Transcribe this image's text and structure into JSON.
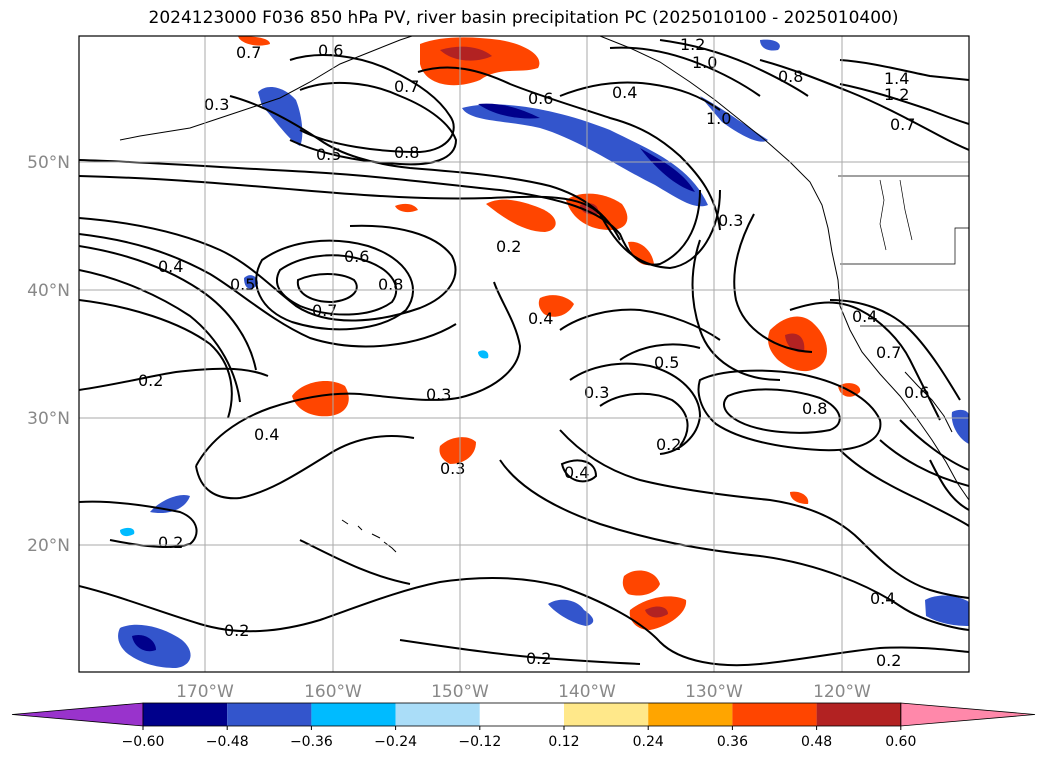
{
  "title": "2024123000 F036 850 hPa PV, river basin precipitation PC (2025010100 - 2025010400)",
  "longitude_labels": [
    "170°W",
    "160°W",
    "150°W",
    "140°W",
    "130°W",
    "120°W"
  ],
  "latitude_labels": [
    "50°N",
    "40°N",
    "30°N",
    "20°N"
  ],
  "colorbar": {
    "ticks": [
      "−0.60",
      "−0.48",
      "−0.36",
      "−0.24",
      "−0.12",
      "0.12",
      "0.24",
      "0.36",
      "0.48",
      "0.60"
    ],
    "colors": [
      "#9933cc",
      "#00008b",
      "#3355cc",
      "#00bbff",
      "#aaddf8",
      "#ffffff",
      "#ffe88a",
      "#ffa500",
      "#ff4500",
      "#b22222",
      "#ff88aa"
    ]
  },
  "contour_labels": [
    "0.7",
    "0.6",
    "0.3",
    "0.7",
    "0.5",
    "0.8",
    "0.6",
    "0.4",
    "1.2",
    "1.0",
    "1.0",
    "0.8",
    "1.4",
    "1.2",
    "0.7",
    "0.2",
    "0.3",
    "0.6",
    "0.4",
    "0.5",
    "0.8",
    "0.7",
    "0.4",
    "0.2",
    "0.5",
    "0.4",
    "0.7",
    "0.6",
    "0.3",
    "0.3",
    "0.4",
    "0.3",
    "0.2",
    "0.8",
    "0.4",
    "0.2",
    "0.2",
    "0.4",
    "0.2",
    "0.2"
  ]
}
